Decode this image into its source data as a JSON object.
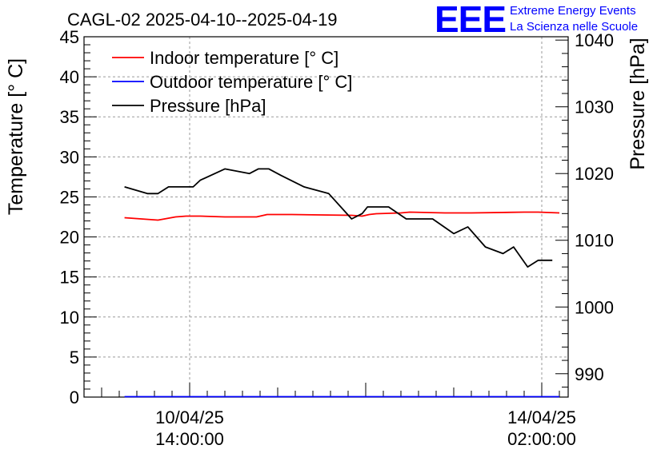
{
  "chart_data": {
    "type": "line",
    "title": "CAGL-02 2025-04-10--2025-04-19",
    "ylabel_left": "Temperature [° C]",
    "ylabel_right": "Pressure [hPa]",
    "ylim_left": [
      0,
      45
    ],
    "ylim_right": [
      986.5,
      1040.5
    ],
    "left_ticks": [
      "0",
      "5",
      "10",
      "15",
      "20",
      "25",
      "30",
      "35",
      "40",
      "45"
    ],
    "right_ticks": [
      "990",
      "1000",
      "1010",
      "1020",
      "1030",
      "1040"
    ],
    "x_range": [
      -0.6,
      2.15
    ],
    "x_ticks": [
      {
        "x": 0,
        "date": "10/04/25",
        "time": "14:00:00"
      },
      {
        "x": 2,
        "date": "14/04/25",
        "time": "02:00:00"
      }
    ],
    "grid": true,
    "legend_position": "top-left",
    "series": [
      {
        "name": "Indoor temperature [° C]",
        "axis": "left",
        "color": "#ff0000",
        "x": [
          -0.37,
          -0.18,
          -0.08,
          -0.02,
          0.06,
          0.2,
          0.28,
          0.38,
          0.44,
          0.58,
          0.92,
          0.98,
          1.02,
          1.06,
          1.2,
          1.25,
          1.45,
          1.6,
          1.9,
          1.98,
          2.1
        ],
        "y": [
          22.4,
          22.1,
          22.5,
          22.6,
          22.6,
          22.5,
          22.5,
          22.5,
          22.8,
          22.8,
          22.7,
          22.6,
          22.8,
          22.9,
          23.0,
          23.1,
          23.0,
          23.0,
          23.1,
          23.1,
          23.0
        ]
      },
      {
        "name": "Outdoor temperature [° C]",
        "axis": "left",
        "color": "#0000ff",
        "x": [
          -0.37,
          2.1
        ],
        "y": [
          0.05,
          0.05
        ]
      },
      {
        "name": "Pressure [hPa]",
        "axis": "right",
        "color": "#000000",
        "x": [
          -0.37,
          -0.24,
          -0.18,
          -0.12,
          -0.08,
          0.02,
          0.06,
          0.2,
          0.34,
          0.39,
          0.45,
          0.52,
          0.65,
          0.79,
          0.92,
          0.98,
          1.01,
          1.13,
          1.23,
          1.38,
          1.5,
          1.58,
          1.68,
          1.78,
          1.84,
          1.92,
          1.98,
          2.06
        ],
        "y": [
          1018.0,
          1017.0,
          1017.0,
          1018.0,
          1018.0,
          1018.0,
          1019.0,
          1020.7,
          1020.0,
          1020.7,
          1020.7,
          1019.7,
          1018.0,
          1017.0,
          1013.2,
          1014.0,
          1015.0,
          1015.0,
          1013.2,
          1013.2,
          1011.0,
          1012.0,
          1009.0,
          1008.0,
          1009.0,
          1006.0,
          1007.0,
          1007.0
        ]
      }
    ]
  },
  "logo": {
    "letters": "EEE",
    "line1": "Extreme Energy Events",
    "line2": "La Scienza nelle Scuole",
    "color": "#0000ff"
  }
}
